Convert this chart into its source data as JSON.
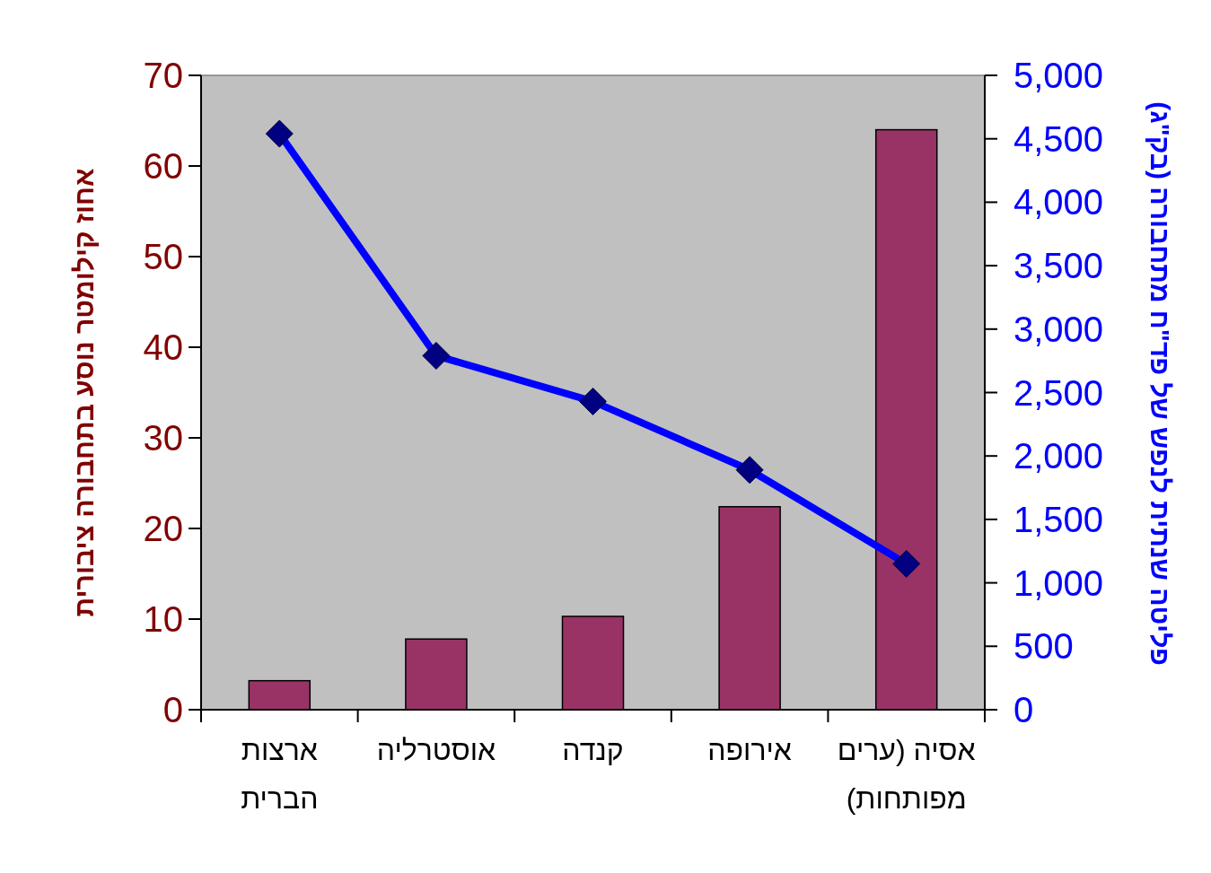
{
  "chart_data": {
    "type": "bar",
    "ylabel": "אחוז קילומטר נוסע בתחבורה ציבורית",
    "y2label": "פליטה שנתית לנפש של פד\"ח מתחבורה (בק\"ג)",
    "categories": [
      "ארצות הברית",
      "אוסטרליה",
      "קנדה",
      "אירופה",
      "אסיה (ערים מפותחות)"
    ],
    "series": [
      {
        "color": "#993366",
        "values": [
          3.2,
          7.8,
          10.3,
          22.4,
          64
        ]
      },
      {
        "type": "line",
        "axis": "y2",
        "color": "#0000ff",
        "marker": "diamond",
        "values": [
          4540,
          2790,
          2430,
          1890,
          1150
        ]
      }
    ],
    "ylim": [
      0,
      70
    ],
    "yticks": [
      0,
      10,
      20,
      30,
      40,
      50,
      60,
      70
    ],
    "y2lim": [
      0,
      5000
    ],
    "y2ticks": [
      0,
      500,
      {
        "value": 1000,
        "label": "1,000"
      },
      {
        "value": 1500,
        "label": "1,500"
      },
      {
        "value": 2000,
        "label": "2,000"
      },
      {
        "value": 2500,
        "label": "2,500"
      },
      {
        "value": 3000,
        "label": "3,000"
      },
      {
        "value": 3500,
        "label": "3,500"
      },
      {
        "value": 4000,
        "label": "4,000"
      },
      {
        "value": 4500,
        "label": "4,500"
      },
      {
        "value": 5000,
        "label": "5,000"
      }
    ]
  }
}
